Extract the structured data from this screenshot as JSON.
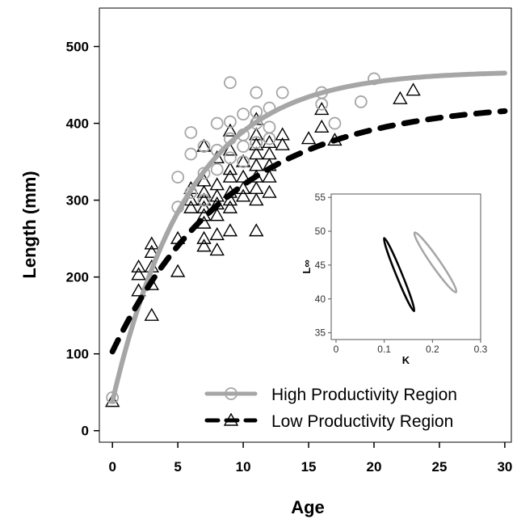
{
  "chart_data": [
    {
      "type": "scatter",
      "xlabel": "Age",
      "ylabel": "Length (mm)",
      "xlim": [
        -1,
        30.5
      ],
      "ylim": [
        -15,
        550
      ],
      "xticks": [
        0,
        5,
        10,
        15,
        20,
        25,
        30
      ],
      "yticks": [
        0,
        100,
        200,
        300,
        400,
        500
      ],
      "grid": false,
      "legend": "bottom-right",
      "series": [
        {
          "name": "High Productivity Region",
          "marker": "circle",
          "color": "#a6a6a6",
          "curve": {
            "linf": 468,
            "k": 0.17,
            "t0": -0.5,
            "style": "solid"
          },
          "points": [
            [
              0,
              43
            ],
            [
              5,
              330
            ],
            [
              5,
              291
            ],
            [
              6,
              388
            ],
            [
              6,
              360
            ],
            [
              6,
              310
            ],
            [
              7,
              370
            ],
            [
              7,
              335
            ],
            [
              7,
              300
            ],
            [
              8,
              400
            ],
            [
              8,
              365
            ],
            [
              8,
              340
            ],
            [
              9,
              453
            ],
            [
              9,
              402
            ],
            [
              9,
              380
            ],
            [
              9,
              355
            ],
            [
              10,
              412
            ],
            [
              10,
              385
            ],
            [
              10,
              370
            ],
            [
              10,
              350
            ],
            [
              11,
              440
            ],
            [
              11,
              415
            ],
            [
              11,
              400
            ],
            [
              11,
              375
            ],
            [
              12,
              420
            ],
            [
              12,
              395
            ],
            [
              12,
              380
            ],
            [
              13,
              440
            ],
            [
              16,
              440
            ],
            [
              16,
              425
            ],
            [
              17,
              400
            ],
            [
              19,
              428
            ],
            [
              20,
              458
            ]
          ]
        },
        {
          "name": "Low Productivity Region",
          "marker": "triangle",
          "color": "#000000",
          "curve": {
            "linf": 428,
            "k": 0.11,
            "t0": -2.5,
            "style": "dashed"
          },
          "points": [
            [
              0,
              38
            ],
            [
              2,
              213
            ],
            [
              2,
              203
            ],
            [
              2,
              182
            ],
            [
              3,
              243
            ],
            [
              3,
              232
            ],
            [
              3,
              213
            ],
            [
              3,
              190
            ],
            [
              3,
              150
            ],
            [
              5,
              250
            ],
            [
              5,
              207
            ],
            [
              6,
              315
            ],
            [
              6,
              300
            ],
            [
              6,
              290
            ],
            [
              7,
              370
            ],
            [
              7,
              325
            ],
            [
              7,
              310
            ],
            [
              7,
              300
            ],
            [
              7,
              290
            ],
            [
              7,
              280
            ],
            [
              7,
              270
            ],
            [
              7,
              250
            ],
            [
              7,
              240
            ],
            [
              8,
              355
            ],
            [
              8,
              320
            ],
            [
              8,
              305
            ],
            [
              8,
              295
            ],
            [
              8,
              280
            ],
            [
              8,
              255
            ],
            [
              8,
              235
            ],
            [
              9,
              390
            ],
            [
              9,
              365
            ],
            [
              9,
              340
            ],
            [
              9,
              330
            ],
            [
              9,
              310
            ],
            [
              9,
              300
            ],
            [
              9,
              290
            ],
            [
              9,
              260
            ],
            [
              10,
              350
            ],
            [
              10,
              330
            ],
            [
              10,
              315
            ],
            [
              10,
              305
            ],
            [
              11,
              405
            ],
            [
              11,
              385
            ],
            [
              11,
              372
            ],
            [
              11,
              360
            ],
            [
              11,
              345
            ],
            [
              11,
              330
            ],
            [
              11,
              315
            ],
            [
              11,
              300
            ],
            [
              11,
              260
            ],
            [
              12,
              375
            ],
            [
              12,
              360
            ],
            [
              12,
              345
            ],
            [
              12,
              330
            ],
            [
              12,
              310
            ],
            [
              13,
              385
            ],
            [
              13,
              372
            ],
            [
              15,
              380
            ],
            [
              16,
              418
            ],
            [
              16,
              395
            ],
            [
              17,
              378
            ],
            [
              22,
              432
            ],
            [
              23,
              443
            ]
          ]
        }
      ]
    },
    {
      "type": "line",
      "xlabel": "K",
      "ylabel": "L∞",
      "xlim": [
        -0.01,
        0.3
      ],
      "ylim": [
        34,
        55.5
      ],
      "xticks": [
        "0",
        "0.1",
        "0.2",
        "0.3"
      ],
      "yticks": [
        "35",
        "40",
        "45",
        "50",
        "55"
      ],
      "series": [
        {
          "color": "#000000",
          "center": [
            0.131,
            43.6
          ],
          "axis_end": [
            0.1,
            49
          ],
          "axis_end2": [
            0.162,
            38.2
          ],
          "half_width": 0.006
        },
        {
          "color": "#a6a6a6",
          "center": [
            0.206,
            45.4
          ],
          "axis_end": [
            0.163,
            49.8
          ],
          "axis_end2": [
            0.249,
            41
          ],
          "half_width": 0.009
        }
      ]
    }
  ]
}
